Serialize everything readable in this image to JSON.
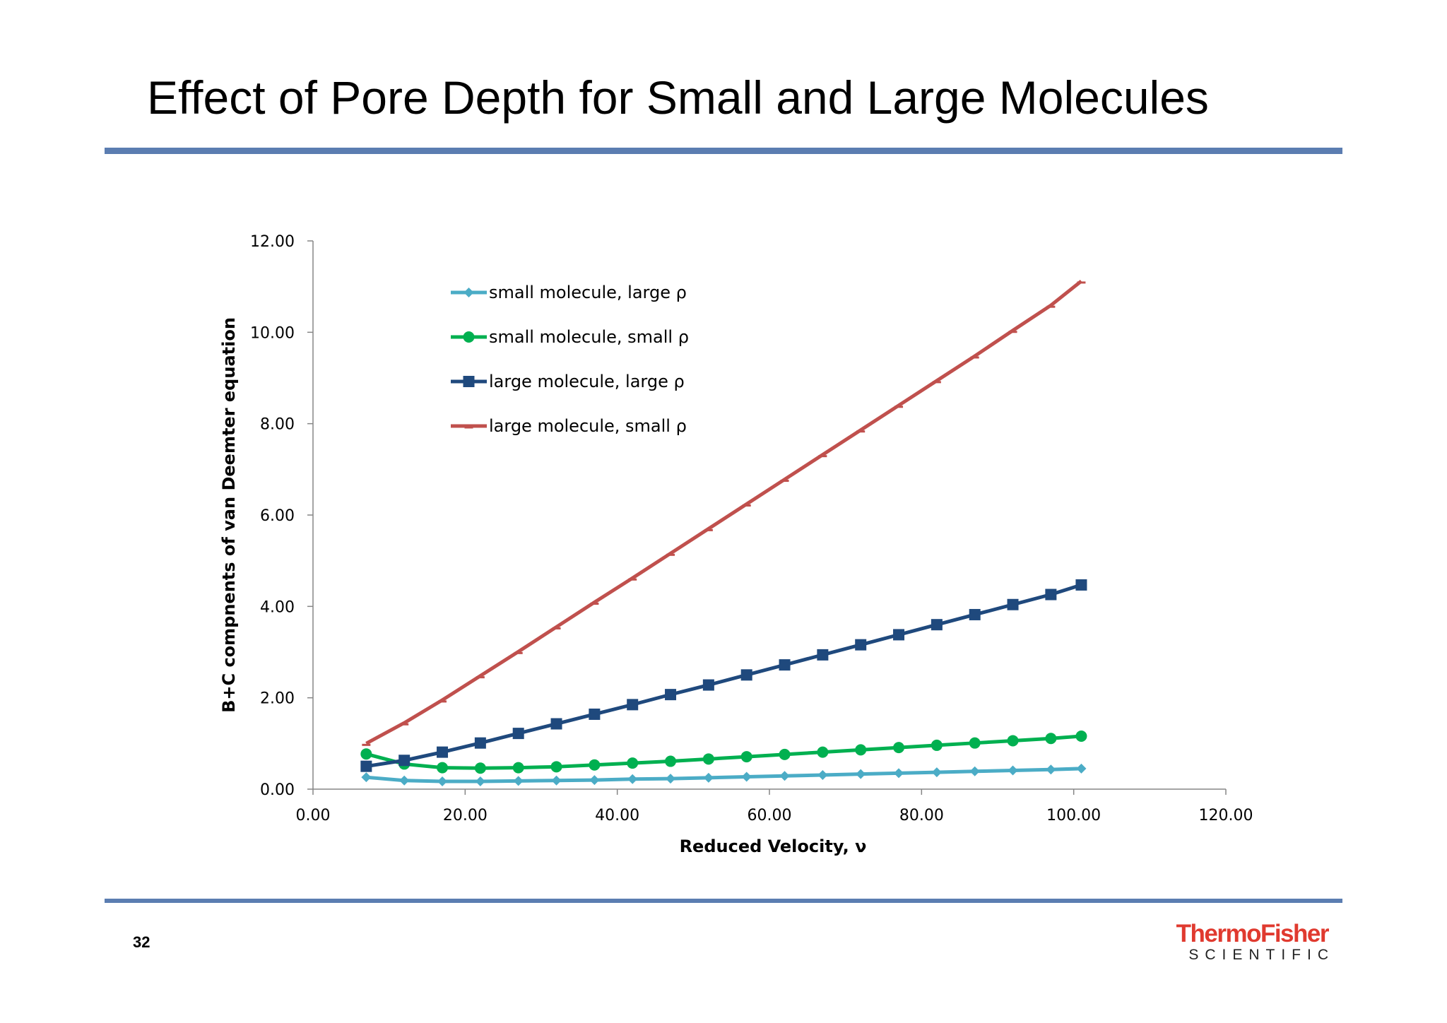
{
  "slide": {
    "title": "Effect of Pore Depth for Small and Large Molecules",
    "page_number": "32",
    "rule_color": "#5b7db1"
  },
  "logo": {
    "line1": "ThermoFisher",
    "line2": "SCIENTIFIC",
    "color1": "#e03a2f",
    "color2": "#222222"
  },
  "chart_data": {
    "type": "line",
    "xlabel": "Reduced Velocity, ν",
    "ylabel": "B+C compnents of van Deemter equation",
    "xlim": [
      0,
      120
    ],
    "ylim": [
      0,
      12
    ],
    "xticks": [
      "0.00",
      "20.00",
      "40.00",
      "60.00",
      "80.00",
      "100.00",
      "120.00"
    ],
    "yticks": [
      "0.00",
      "2.00",
      "4.00",
      "6.00",
      "8.00",
      "10.00",
      "12.00"
    ],
    "x": [
      7,
      12,
      17,
      22,
      27,
      32,
      37,
      42,
      47,
      52,
      57,
      62,
      67,
      72,
      77,
      82,
      87,
      92,
      97,
      101
    ],
    "legend_position": "top-left",
    "grid": false,
    "series": [
      {
        "name": "small molecule, large ρ",
        "color": "#4bacc6",
        "marker": "diamond",
        "values": [
          0.26,
          0.19,
          0.17,
          0.17,
          0.18,
          0.19,
          0.2,
          0.22,
          0.23,
          0.25,
          0.27,
          0.29,
          0.31,
          0.33,
          0.35,
          0.37,
          0.39,
          0.41,
          0.43,
          0.45
        ]
      },
      {
        "name": "small molecule, small ρ",
        "color": "#00b050",
        "marker": "circle",
        "values": [
          0.77,
          0.55,
          0.47,
          0.46,
          0.47,
          0.49,
          0.53,
          0.57,
          0.61,
          0.66,
          0.71,
          0.76,
          0.81,
          0.86,
          0.91,
          0.96,
          1.01,
          1.06,
          1.11,
          1.16
        ]
      },
      {
        "name": "large molecule, large ρ",
        "color": "#1f497d",
        "marker": "square",
        "values": [
          0.5,
          0.63,
          0.81,
          1.01,
          1.22,
          1.43,
          1.64,
          1.85,
          2.07,
          2.28,
          2.5,
          2.72,
          2.94,
          3.16,
          3.38,
          3.6,
          3.82,
          4.04,
          4.26,
          4.47
        ]
      },
      {
        "name": "large molecule, small ρ",
        "color": "#c0504d",
        "marker": "dash",
        "values": [
          1.0,
          1.45,
          1.95,
          2.48,
          3.01,
          3.55,
          4.09,
          4.62,
          5.16,
          5.7,
          6.24,
          6.78,
          7.32,
          7.86,
          8.4,
          8.94,
          9.48,
          10.04,
          10.59,
          11.12
        ]
      }
    ]
  }
}
